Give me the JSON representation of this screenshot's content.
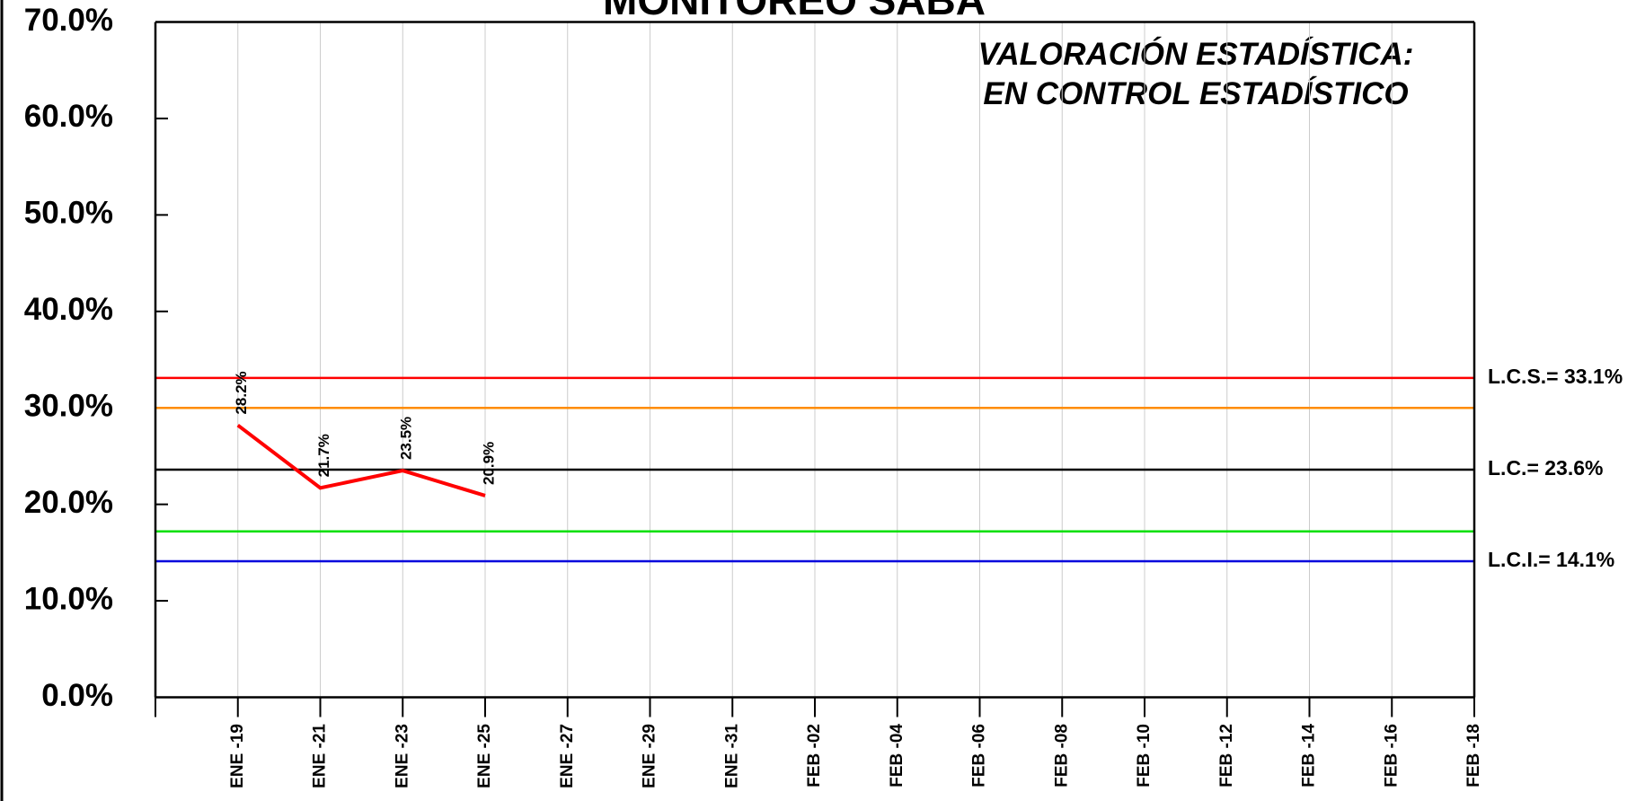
{
  "chart_data": {
    "type": "line",
    "title": "MONITOREO SABA",
    "annotation": [
      "VALORACIÓN ESTADÍSTICA:",
      "EN CONTROL ESTADÍSTICO"
    ],
    "categories": [
      "ENE -19",
      "ENE -21",
      "ENE -23",
      "ENE -25",
      "ENE -27",
      "ENE -29",
      "ENE -31",
      "FEB -02",
      "FEB -04",
      "FEB -06",
      "FEB -08",
      "FEB -10",
      "FEB -12",
      "FEB -14",
      "FEB -16",
      "FEB -18"
    ],
    "series": [
      {
        "color": "#ff0000",
        "values": [
          28.2,
          21.7,
          23.5,
          20.9,
          null,
          null,
          null,
          null,
          null,
          null,
          null,
          null,
          null,
          null,
          null,
          null
        ],
        "value_labels": [
          "28.2%",
          "21.7%",
          "23.5%",
          "20.9%",
          null,
          null,
          null,
          null,
          null,
          null,
          null,
          null,
          null,
          null,
          null,
          null
        ]
      }
    ],
    "limits": [
      {
        "value": 33.1,
        "color": "#ff0000",
        "label": "L.C.S.= 33.1%"
      },
      {
        "value": 30.0,
        "color": "#ff8c00"
      },
      {
        "value": 23.6,
        "color": "#000000",
        "label": "L.C.= 23.6%"
      },
      {
        "value": 17.2,
        "color": "#00e000"
      },
      {
        "value": 14.1,
        "color": "#0000dd",
        "label": "L.C.I.= 14.1%"
      }
    ],
    "ylim": [
      0,
      70
    ],
    "yticks": [
      {
        "value": 0,
        "label": "0.0%"
      },
      {
        "value": 10,
        "label": "10.0%"
      },
      {
        "value": 20,
        "label": "20.0%"
      },
      {
        "value": 30,
        "label": "30.0%"
      },
      {
        "value": 40,
        "label": "40.0%"
      },
      {
        "value": 50,
        "label": "50.0%"
      },
      {
        "value": 60,
        "label": "60.0%"
      },
      {
        "value": 70,
        "label": "70.0%"
      }
    ],
    "grid": true
  }
}
